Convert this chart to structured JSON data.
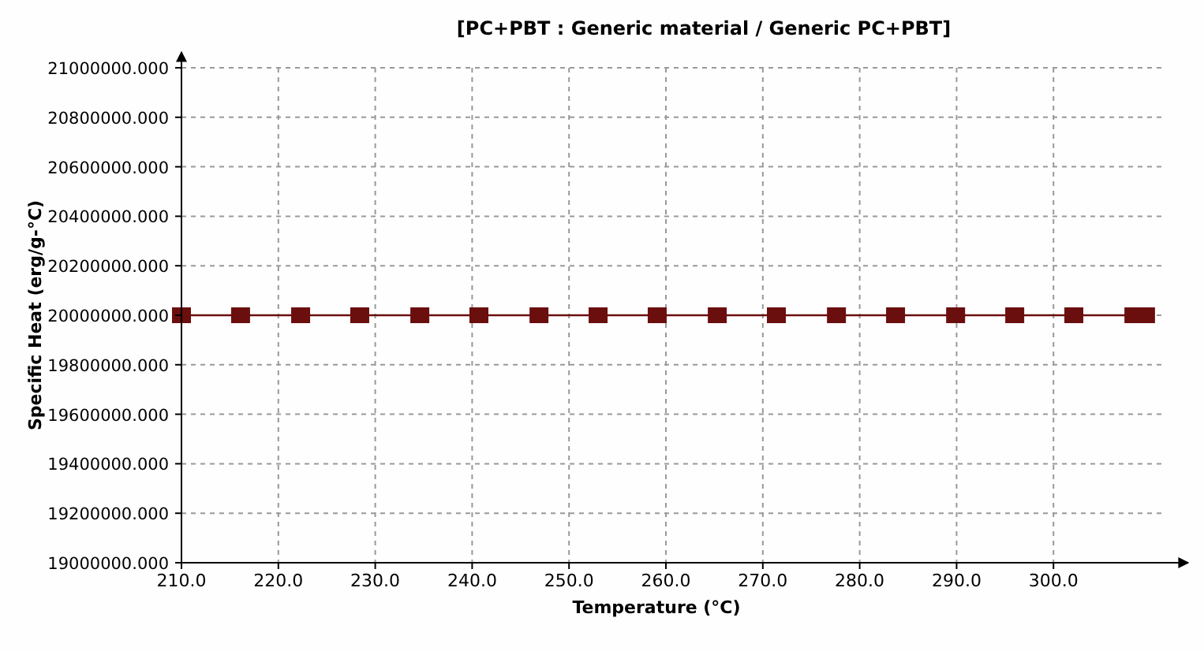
{
  "chart_data": {
    "type": "line",
    "title": "[PC+PBT : Generic material / Generic PC+PBT]",
    "xlabel": "Temperature (°C)",
    "ylabel": "Specific Heat (erg/g-°C)",
    "x": [
      210,
      216.1,
      222.3,
      228.4,
      234.6,
      240.7,
      246.9,
      253.0,
      259.1,
      265.3,
      271.4,
      277.6,
      283.7,
      289.9,
      296.0,
      302.1,
      308.3,
      309.5
    ],
    "series": [
      {
        "color": "#6b0e0e",
        "values": [
          20000000,
          20000000,
          20000000,
          20000000,
          20000000,
          20000000,
          20000000,
          20000000,
          20000000,
          20000000,
          20000000,
          20000000,
          20000000,
          20000000,
          20000000,
          20000000,
          20000000,
          20000000
        ]
      }
    ],
    "xlim": [
      210,
      311.3
    ],
    "xticks": [
      {
        "value": 210,
        "label": "210.0"
      },
      {
        "value": 220,
        "label": "220.0"
      },
      {
        "value": 230,
        "label": "230.0"
      },
      {
        "value": 240,
        "label": "240.0"
      },
      {
        "value": 250,
        "label": "250.0"
      },
      {
        "value": 260,
        "label": "260.0"
      },
      {
        "value": 270,
        "label": "270.0"
      },
      {
        "value": 280,
        "label": "280.0"
      },
      {
        "value": 290,
        "label": "290.0"
      },
      {
        "value": 300,
        "label": "300.0"
      }
    ],
    "ylim": [
      19000000,
      21000000
    ],
    "yticks": [
      {
        "value": 19000000,
        "label": "19000000.000"
      },
      {
        "value": 19200000,
        "label": "19200000.000"
      },
      {
        "value": 19400000,
        "label": "19400000.000"
      },
      {
        "value": 19600000,
        "label": "19600000.000"
      },
      {
        "value": 19800000,
        "label": "19800000.000"
      },
      {
        "value": 20000000,
        "label": "20000000.000"
      },
      {
        "value": 20200000,
        "label": "20200000.000"
      },
      {
        "value": 20400000,
        "label": "20400000.000"
      },
      {
        "value": 20600000,
        "label": "20600000.000"
      },
      {
        "value": 20800000,
        "label": "20800000.000"
      },
      {
        "value": 21000000,
        "label": "21000000.000"
      }
    ],
    "grid": true,
    "marker": "square",
    "line_style": "solid"
  }
}
